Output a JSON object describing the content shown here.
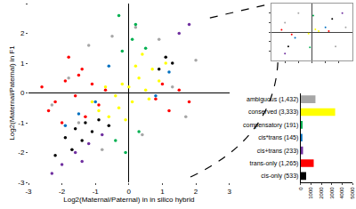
{
  "chart_data": [
    {
      "type": "scatter",
      "x_label": "Log2(Maternal/Paternal) in in silico hybrid",
      "y_label": "Log2(Maternal/Paternal) in F1",
      "xlim": [
        -3,
        3
      ],
      "xticks": [
        -3,
        -2,
        -1,
        0,
        1,
        2,
        3
      ],
      "ylim": [
        -3,
        3
      ],
      "yticks": [
        -3,
        -2,
        -1,
        0,
        1,
        2,
        3
      ],
      "grid": false,
      "series": [
        {
          "name": "ambiguous",
          "color": "#a6a6a6",
          "x": [
            -1.8,
            -1.2,
            0.4,
            1.3,
            -0.5,
            2.0,
            -2.3,
            0.9,
            1.7,
            -0.8,
            0.2,
            -1.5
          ],
          "values": [
            0.5,
            1.6,
            -1.4,
            0.2,
            1.9,
            1.1,
            -0.4,
            1.8,
            -0.8,
            -1.9,
            2.2,
            -1.0
          ]
        },
        {
          "name": "conserved",
          "color": "#ffff00",
          "x": [
            -0.9,
            -0.6,
            -0.4,
            -0.2,
            0,
            0.1,
            0.3,
            0.5,
            0.7,
            0.9,
            -0.3,
            0.2,
            -0.7,
            0.6,
            1.1,
            -1.1,
            0.4,
            -0.1
          ],
          "values": [
            -0.6,
            -0.8,
            -0.1,
            0.3,
            0.2,
            -0.3,
            0.5,
            0.1,
            0.8,
            0.4,
            -0.5,
            0.9,
            0.2,
            -0.2,
            1.0,
            -0.3,
            1.3,
            -0.9
          ]
        },
        {
          "name": "trans-only",
          "color": "#ff0000",
          "x": [
            -2.6,
            -2.2,
            -1.9,
            -1.6,
            -1.4,
            -1.1,
            -0.9,
            -2.4,
            -1.8,
            -1.3,
            0.8,
            1.0,
            1.2,
            1.5,
            -2.0,
            -1.5,
            -0.7,
            1.8
          ],
          "values": [
            0.2,
            -0.3,
            0.4,
            -0.1,
            0.8,
            0.3,
            -0.4,
            -0.6,
            1.2,
            -0.8,
            -0.2,
            0.3,
            -0.6,
            0.1,
            -1.0,
            0.6,
            0.1,
            -0.3
          ]
        },
        {
          "name": "cis-only",
          "color": "#000000",
          "x": [
            -1.9,
            -1.6,
            -1.3,
            -1.1,
            -1.4,
            -0.9,
            -2.2,
            -1.7,
            0.9,
            1.1,
            1.3,
            -0.6
          ],
          "values": [
            -1.5,
            -1.2,
            -1.0,
            -1.3,
            -1.6,
            -0.9,
            -2.1,
            -1.9,
            0.8,
            1.2,
            1.0,
            -1.1
          ]
        },
        {
          "name": "compensatory",
          "color": "#00b050",
          "x": [
            -0.2,
            0.1,
            0.3,
            -0.4,
            0.2,
            -0.1,
            0.5,
            -0.3
          ],
          "values": [
            1.4,
            1.8,
            -1.3,
            -1.6,
            2.3,
            -2.0,
            1.5,
            2.6
          ]
        },
        {
          "name": "cis+trans",
          "color": "#7030a0",
          "x": [
            -1.6,
            -2.0,
            -1.2,
            -2.3,
            1.5,
            1.8,
            -0.8,
            -1.4
          ],
          "values": [
            -2.0,
            -2.4,
            -1.7,
            -2.7,
            2.0,
            2.3,
            -1.4,
            -2.3
          ]
        },
        {
          "name": "cis*trans",
          "color": "#0070c0",
          "x": [
            -1.5,
            -1.0,
            1.2,
            -0.6,
            0.8,
            -1.9
          ],
          "values": [
            -0.7,
            -0.3,
            0.7,
            0.9,
            -0.1,
            -1.1
          ]
        }
      ]
    },
    {
      "type": "scatter",
      "xlim": [
        -6,
        6
      ],
      "xticks": [
        -4,
        -2,
        0,
        2,
        4
      ],
      "ylim": [
        -6,
        6
      ],
      "yticks": [
        -4,
        -2,
        0,
        2,
        4
      ],
      "tick_labels": false,
      "series": [
        {
          "name": "ambiguous",
          "color": "#a6a6a6",
          "x": [
            -4,
            3.5,
            -2,
            5
          ],
          "values": [
            2,
            -3,
            4,
            1
          ]
        },
        {
          "name": "conserved",
          "color": "#ffff00",
          "x": [
            -0.5,
            0.5,
            1
          ],
          "values": [
            -0.3,
            0.6,
            0.2
          ]
        },
        {
          "name": "trans-only",
          "color": "#ff0000",
          "x": [
            -4.5,
            -3,
            2.5
          ],
          "values": [
            0.5,
            -0.5,
            0.2
          ]
        },
        {
          "name": "cis-only",
          "color": "#000000",
          "x": [
            -3.5,
            3
          ],
          "values": [
            -3,
            2.8
          ]
        },
        {
          "name": "compensatory",
          "color": "#00b050",
          "x": [
            0.2,
            -0.3
          ],
          "values": [
            3.5,
            -3.2
          ]
        },
        {
          "name": "cis+trans",
          "color": "#7030a0",
          "x": [
            -4,
            4.5
          ],
          "values": [
            -4.5,
            4
          ]
        },
        {
          "name": "cis*trans",
          "color": "#0070c0",
          "x": [
            -2.5,
            2
          ],
          "values": [
            -1.2,
            1
          ]
        }
      ]
    },
    {
      "type": "bar",
      "orientation": "horizontal",
      "categories": [
        "ambiguous (1,432)",
        "conserved (3,333)",
        "compensatory (191)",
        "cis*trans (145)",
        "cis+trans (233)",
        "trans-only (1,265)",
        "cis-only (533)"
      ],
      "values": [
        1432,
        3333,
        191,
        145,
        233,
        1265,
        533
      ],
      "colors": [
        "#a6a6a6",
        "#ffff00",
        "#00b050",
        "#0070c0",
        "#7030a0",
        "#ff0000",
        "#000000"
      ],
      "xlim": [
        0,
        5000
      ],
      "xticks": [
        0,
        1000,
        2000,
        3000,
        4000,
        5000
      ]
    }
  ]
}
